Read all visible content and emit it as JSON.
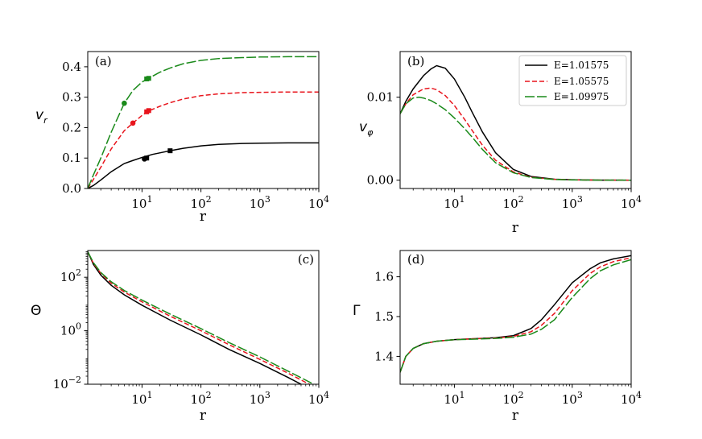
{
  "legend": {
    "entries": [
      {
        "label": "E=1.01575",
        "color": "#000000",
        "dash": "solid"
      },
      {
        "label": "E=1.05575",
        "color": "#e8141c",
        "dash": "dashed"
      },
      {
        "label": "E=1.09975",
        "color": "#1a8a1a",
        "dash": "longdash"
      }
    ]
  },
  "chart_data": [
    {
      "type": "line",
      "panel": "(a)",
      "xlabel": "r",
      "ylabel": "v_r",
      "xscale": "log",
      "xlim": [
        1.2,
        10000
      ],
      "ylim": [
        0.0,
        0.45
      ],
      "xticks": [
        {
          "base": "10",
          "exp": "1"
        },
        {
          "base": "10",
          "exp": "2"
        },
        {
          "base": "10",
          "exp": "3"
        },
        {
          "base": "10",
          "exp": "4"
        }
      ],
      "yticks": [
        "0.0",
        "0.1",
        "0.2",
        "0.3",
        "0.4"
      ],
      "ytick_values": [
        0.0,
        0.1,
        0.2,
        0.3,
        0.4
      ],
      "series": [
        {
          "name": "E=1.01575",
          "color": "#000000",
          "dash": "solid",
          "x": [
            1.2,
            1.5,
            2,
            3,
            5,
            7,
            10,
            15,
            20,
            30,
            50,
            100,
            200,
            500,
            1000,
            3000,
            10000
          ],
          "y": [
            0.0,
            0.01,
            0.028,
            0.055,
            0.082,
            0.092,
            0.102,
            0.112,
            0.117,
            0.124,
            0.132,
            0.14,
            0.145,
            0.148,
            0.149,
            0.15,
            0.15
          ]
        },
        {
          "name": "E=1.05575",
          "color": "#e8141c",
          "dash": "dashed",
          "x": [
            1.2,
            1.5,
            2,
            3,
            5,
            7,
            10,
            13,
            20,
            30,
            50,
            100,
            200,
            500,
            1000,
            3000,
            10000
          ],
          "y": [
            0.0,
            0.03,
            0.07,
            0.13,
            0.19,
            0.215,
            0.24,
            0.255,
            0.27,
            0.282,
            0.294,
            0.305,
            0.311,
            0.315,
            0.316,
            0.317,
            0.317
          ]
        },
        {
          "name": "E=1.09975",
          "color": "#1a8a1a",
          "dash": "longdash",
          "x": [
            1.2,
            1.5,
            2,
            3,
            5,
            7,
            10,
            13,
            20,
            30,
            50,
            100,
            200,
            500,
            1000,
            3000,
            10000
          ],
          "y": [
            0.0,
            0.045,
            0.1,
            0.185,
            0.28,
            0.322,
            0.35,
            0.362,
            0.382,
            0.396,
            0.41,
            0.421,
            0.427,
            0.43,
            0.432,
            0.433,
            0.433
          ]
        }
      ],
      "markers": [
        {
          "series": "E=1.01575",
          "x": 11,
          "y": 0.097,
          "shape": "circle"
        },
        {
          "series": "E=1.01575",
          "x": 12,
          "y": 0.1,
          "shape": "square"
        },
        {
          "series": "E=1.01575",
          "x": 30,
          "y": 0.124,
          "shape": "square"
        },
        {
          "series": "E=1.05575",
          "x": 7,
          "y": 0.215,
          "shape": "circle"
        },
        {
          "series": "E=1.05575",
          "x": 12,
          "y": 0.252,
          "shape": "square"
        },
        {
          "series": "E=1.05575",
          "x": 13,
          "y": 0.256,
          "shape": "square"
        },
        {
          "series": "E=1.09975",
          "x": 5,
          "y": 0.28,
          "shape": "circle"
        },
        {
          "series": "E=1.09975",
          "x": 12,
          "y": 0.36,
          "shape": "square"
        },
        {
          "series": "E=1.09975",
          "x": 13,
          "y": 0.362,
          "shape": "square"
        }
      ]
    },
    {
      "type": "line",
      "panel": "(b)",
      "xlabel": "r",
      "ylabel": "v_φ",
      "xscale": "log",
      "xlim": [
        1.2,
        10000
      ],
      "ylim": [
        -0.001,
        0.0155
      ],
      "xticks": [
        {
          "base": "10",
          "exp": "1"
        },
        {
          "base": "10",
          "exp": "2"
        },
        {
          "base": "10",
          "exp": "3"
        },
        {
          "base": "10",
          "exp": "4"
        }
      ],
      "yticks": [
        "0.00",
        "0.01"
      ],
      "ytick_values": [
        0.0,
        0.01
      ],
      "series": [
        {
          "name": "E=1.01575",
          "color": "#000000",
          "dash": "solid",
          "x": [
            1.2,
            1.5,
            2,
            3,
            4,
            5,
            7,
            10,
            15,
            20,
            30,
            50,
            100,
            200,
            500,
            1000,
            3000,
            10000
          ],
          "y": [
            0.008,
            0.0095,
            0.011,
            0.0126,
            0.0134,
            0.0138,
            0.0135,
            0.0122,
            0.01,
            0.0082,
            0.0058,
            0.0033,
            0.0013,
            0.00045,
            0.00012,
            5e-05,
            1e-05,
            0.0
          ]
        },
        {
          "name": "E=1.05575",
          "color": "#e8141c",
          "dash": "dashed",
          "x": [
            1.2,
            1.5,
            2,
            3,
            4,
            5,
            7,
            10,
            15,
            20,
            30,
            50,
            100,
            200,
            500,
            1000,
            3000,
            10000
          ],
          "y": [
            0.008,
            0.0092,
            0.0103,
            0.011,
            0.0111,
            0.0109,
            0.0102,
            0.009,
            0.0073,
            0.006,
            0.0042,
            0.0024,
            0.001,
            0.00035,
            0.0001,
            4e-05,
            1e-05,
            0.0
          ]
        },
        {
          "name": "E=1.09975",
          "color": "#1a8a1a",
          "dash": "longdash",
          "x": [
            1.2,
            1.5,
            2,
            2.5,
            3,
            4,
            5,
            7,
            10,
            15,
            20,
            30,
            50,
            100,
            200,
            500,
            1000,
            3000,
            10000
          ],
          "y": [
            0.008,
            0.0092,
            0.0099,
            0.01,
            0.0099,
            0.0096,
            0.0092,
            0.0085,
            0.0075,
            0.0062,
            0.0052,
            0.0037,
            0.0021,
            0.0009,
            0.00032,
            9e-05,
            3e-05,
            1e-05,
            0.0
          ]
        }
      ]
    },
    {
      "type": "line",
      "panel": "(c)",
      "xlabel": "r",
      "ylabel": "Θ",
      "xscale": "log",
      "yscale": "log",
      "xlim": [
        1.2,
        10000
      ],
      "ylim": [
        0.01,
        1000
      ],
      "xticks": [
        {
          "base": "10",
          "exp": "1"
        },
        {
          "base": "10",
          "exp": "2"
        },
        {
          "base": "10",
          "exp": "3"
        },
        {
          "base": "10",
          "exp": "4"
        }
      ],
      "yticks": [
        {
          "base": "10",
          "exp": "2"
        },
        {
          "base": "10",
          "exp": "0"
        },
        {
          "base": "10",
          "exp": "−2"
        }
      ],
      "ytick_values": [
        100,
        1,
        0.01
      ],
      "series": [
        {
          "name": "E=1.01575",
          "color": "#000000",
          "dash": "solid",
          "x": [
            1.2,
            1.5,
            2,
            3,
            5,
            10,
            30,
            100,
            300,
            1000,
            3000,
            10000
          ],
          "y": [
            900,
            300,
            120,
            50,
            22,
            9,
            2.5,
            0.7,
            0.2,
            0.06,
            0.018,
            0.0045
          ]
        },
        {
          "name": "E=1.05575",
          "color": "#e8141c",
          "dash": "dashed",
          "x": [
            1.2,
            1.5,
            2,
            3,
            5,
            10,
            30,
            100,
            300,
            1000,
            3000,
            10000
          ],
          "y": [
            900,
            330,
            140,
            60,
            28,
            12,
            3.5,
            1.0,
            0.3,
            0.085,
            0.026,
            0.0065
          ]
        },
        {
          "name": "E=1.09975",
          "color": "#1a8a1a",
          "dash": "longdash",
          "x": [
            1.2,
            1.5,
            2,
            3,
            5,
            10,
            30,
            100,
            300,
            1000,
            3000,
            10000
          ],
          "y": [
            900,
            350,
            150,
            68,
            32,
            14,
            4.2,
            1.2,
            0.36,
            0.105,
            0.031,
            0.008
          ]
        }
      ]
    },
    {
      "type": "line",
      "panel": "(d)",
      "xlabel": "r",
      "ylabel": "Γ",
      "xscale": "log",
      "xlim": [
        1.2,
        10000
      ],
      "ylim": [
        1.33,
        1.666
      ],
      "xticks": [
        {
          "base": "10",
          "exp": "1"
        },
        {
          "base": "10",
          "exp": "2"
        },
        {
          "base": "10",
          "exp": "3"
        },
        {
          "base": "10",
          "exp": "4"
        }
      ],
      "yticks": [
        "1.4",
        "1.5",
        "1.6"
      ],
      "ytick_values": [
        1.4,
        1.5,
        1.6
      ],
      "series": [
        {
          "name": "E=1.01575",
          "color": "#000000",
          "dash": "solid",
          "x": [
            1.2,
            1.5,
            2,
            3,
            5,
            10,
            20,
            50,
            100,
            200,
            300,
            500,
            1000,
            2000,
            3000,
            5000,
            10000
          ],
          "y": [
            1.36,
            1.4,
            1.42,
            1.432,
            1.438,
            1.442,
            1.444,
            1.447,
            1.452,
            1.47,
            1.492,
            1.53,
            1.585,
            1.62,
            1.635,
            1.645,
            1.653
          ]
        },
        {
          "name": "E=1.05575",
          "color": "#e8141c",
          "dash": "dashed",
          "x": [
            1.2,
            1.5,
            2,
            3,
            5,
            10,
            20,
            50,
            100,
            200,
            300,
            500,
            1000,
            2000,
            3000,
            5000,
            10000
          ],
          "y": [
            1.36,
            1.4,
            1.42,
            1.432,
            1.438,
            1.442,
            1.444,
            1.446,
            1.45,
            1.462,
            1.478,
            1.508,
            1.565,
            1.608,
            1.625,
            1.638,
            1.648
          ]
        },
        {
          "name": "E=1.09975",
          "color": "#1a8a1a",
          "dash": "longdash",
          "x": [
            1.2,
            1.5,
            2,
            3,
            5,
            10,
            20,
            50,
            100,
            200,
            300,
            500,
            1000,
            2000,
            3000,
            5000,
            10000
          ],
          "y": [
            1.36,
            1.4,
            1.42,
            1.432,
            1.438,
            1.442,
            1.443,
            1.445,
            1.448,
            1.456,
            1.468,
            1.492,
            1.548,
            1.595,
            1.615,
            1.63,
            1.643
          ]
        }
      ]
    }
  ]
}
